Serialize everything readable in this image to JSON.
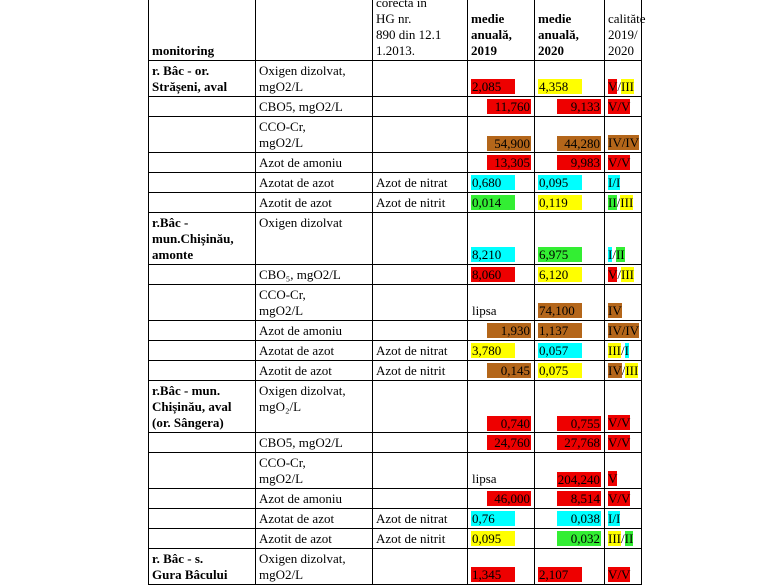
{
  "colors": {
    "V": "#ee0000",
    "IV": "#b4661a",
    "III": "#ffff00",
    "II": "#33ee33",
    "I": "#00ffff"
  },
  "header": {
    "c1": "monitoring",
    "c2": "",
    "c3": "corectă în\nHG nr.\n890 din 12.1\n1.2013.",
    "c4": "medie\nanuală,\n2019",
    "c5": "medie\nanuală,\n2020",
    "c6": "calităte\n2019/\n2020"
  },
  "rows": [
    {
      "station": "r. Bâc - or.\nStrășeni, aval",
      "h": 34,
      "param": "Oxigen dizolvat,\nmgO2/L",
      "form": "",
      "v2019": {
        "text": "2,085",
        "color": "#ee0000",
        "align": "left"
      },
      "v2020": {
        "text": "4,358",
        "color": "#ffff00",
        "align": "left"
      },
      "cls": [
        {
          "text": "V",
          "color": "#ee0000"
        },
        {
          "text": "/",
          "color": ""
        },
        {
          "text": "III",
          "color": "#ffff00"
        }
      ]
    },
    {
      "station": "",
      "h": 20,
      "param": "CBO5, mgO2/L",
      "form": "",
      "v2019": {
        "text": "11,760",
        "color": "#ee0000",
        "align": "right"
      },
      "v2020": {
        "text": "9,133",
        "color": "#ee0000",
        "align": "right"
      },
      "cls": [
        {
          "text": "V/V",
          "color": "#ee0000"
        }
      ]
    },
    {
      "station": "",
      "h": 36,
      "param": "CCO-Cr,\nmgO2/L",
      "form": "",
      "v2019": {
        "text": "54,900",
        "color": "#b4661a",
        "align": "right"
      },
      "v2020": {
        "text": "44,280",
        "color": "#b4661a",
        "align": "right"
      },
      "cls": [
        {
          "text": "IV/IV",
          "color": "#b4661a"
        }
      ]
    },
    {
      "station": "",
      "h": 20,
      "param": "Azot de amoniu",
      "form": "",
      "v2019": {
        "text": "13,305",
        "color": "#ee0000",
        "align": "right"
      },
      "v2020": {
        "text": "9,983",
        "color": "#ee0000",
        "align": "right"
      },
      "cls": [
        {
          "text": "V/V",
          "color": "#ee0000"
        }
      ]
    },
    {
      "station": "",
      "h": 20,
      "param": "Azotat de azot",
      "form": "Azot de nitrat",
      "v2019": {
        "text": "0,680",
        "color": "#00ffff",
        "align": "left"
      },
      "v2020": {
        "text": "0,095",
        "color": "#00ffff",
        "align": "left"
      },
      "cls": [
        {
          "text": "I/I",
          "color": "#00ffff"
        }
      ]
    },
    {
      "station": "",
      "h": 20,
      "param": "Azotit de azot",
      "form": "Azot de nitrit",
      "v2019": {
        "text": "0,014",
        "color": "#33ee33",
        "align": "left"
      },
      "v2020": {
        "text": "0,119",
        "color": "#ffff00",
        "align": "left"
      },
      "cls": [
        {
          "text": "II",
          "color": "#33ee33"
        },
        {
          "text": "/",
          "color": ""
        },
        {
          "text": "III",
          "color": "#ffff00"
        }
      ]
    },
    {
      "station": "r.Bâc -\nmun.Chișinău,\namonte",
      "h": 52,
      "param": "Oxigen dizolvat",
      "form": "",
      "v2019": {
        "text": "8,210",
        "color": "#00ffff",
        "align": "left"
      },
      "v2020": {
        "text": "6,975",
        "color": "#33ee33",
        "align": "left"
      },
      "cls": [
        {
          "text": "I",
          "color": "#00ffff"
        },
        {
          "text": "/",
          "color": ""
        },
        {
          "text": "II",
          "color": "#33ee33"
        }
      ]
    },
    {
      "station": "",
      "h": 20,
      "param": "CBO₅, mgO2/L",
      "form": "",
      "v2019": {
        "text": "8,060",
        "color": "#ee0000",
        "align": "left"
      },
      "v2020": {
        "text": "6,120",
        "color": "#ffff00",
        "align": "left"
      },
      "cls": [
        {
          "text": "V",
          "color": "#ee0000"
        },
        {
          "text": "/",
          "color": ""
        },
        {
          "text": "III",
          "color": "#ffff00"
        }
      ]
    },
    {
      "station": "",
      "h": 36,
      "param": "CCO-Cr,\nmgO2/L",
      "form": "",
      "v2019": {
        "text": "lipsa",
        "color": "",
        "align": "left"
      },
      "v2020": {
        "text": "74,100",
        "color": "#b4661a",
        "align": "left"
      },
      "cls": [
        {
          "text": "IV",
          "color": "#b4661a"
        }
      ]
    },
    {
      "station": "",
      "h": 20,
      "param": "Azot de amoniu",
      "form": "",
      "v2019": {
        "text": "1,930",
        "color": "#b4661a",
        "align": "right"
      },
      "v2020": {
        "text": "1,137",
        "color": "#b4661a",
        "align": "left"
      },
      "cls": [
        {
          "text": "IV/IV",
          "color": "#b4661a"
        }
      ]
    },
    {
      "station": "",
      "h": 20,
      "param": "Azotat de azot",
      "form": "Azot de nitrat",
      "v2019": {
        "text": "3,780",
        "color": "#ffff00",
        "align": "left"
      },
      "v2020": {
        "text": "0,057",
        "color": "#00ffff",
        "align": "left"
      },
      "cls": [
        {
          "text": "III",
          "color": "#ffff00"
        },
        {
          "text": "/",
          "color": ""
        },
        {
          "text": "I",
          "color": "#00ffff"
        }
      ]
    },
    {
      "station": "",
      "h": 20,
      "param": "Azotit de azot",
      "form": "Azot de nitrit",
      "v2019": {
        "text": "0,145",
        "color": "#b4661a",
        "align": "right"
      },
      "v2020": {
        "text": "0,075",
        "color": "#ffff00",
        "align": "left"
      },
      "cls": [
        {
          "text": "IV",
          "color": "#b4661a"
        },
        {
          "text": "/",
          "color": ""
        },
        {
          "text": "III",
          "color": "#ffff00"
        }
      ]
    },
    {
      "station": "r.Bâc - mun.\nChișinău, aval\n(or. Sângera)",
      "h": 52,
      "param": "Oxigen dizolvat,\nmgO₂/L",
      "form": "",
      "v2019": {
        "text": "0,740",
        "color": "#ee0000",
        "align": "right"
      },
      "v2020": {
        "text": "0,755",
        "color": "#ee0000",
        "align": "right"
      },
      "cls": [
        {
          "text": "V/V",
          "color": "#ee0000"
        }
      ]
    },
    {
      "station": "",
      "h": 20,
      "param": "CBO5, mgO2/L",
      "form": "",
      "v2019": {
        "text": "24,760",
        "color": "#ee0000",
        "align": "right"
      },
      "v2020": {
        "text": "27,768",
        "color": "#ee0000",
        "align": "right"
      },
      "cls": [
        {
          "text": "V/V",
          "color": "#ee0000"
        }
      ]
    },
    {
      "station": "",
      "h": 36,
      "param": "CCO-Cr,\nmgO2/L",
      "form": "",
      "v2019": {
        "text": "lipsa",
        "color": "",
        "align": "left"
      },
      "v2020": {
        "text": "204,240",
        "color": "#ee0000",
        "align": "right"
      },
      "cls": [
        {
          "text": "V",
          "color": "#ee0000"
        }
      ]
    },
    {
      "station": "",
      "h": 20,
      "param": "Azot de amoniu",
      "form": "",
      "v2019": {
        "text": "46,000",
        "color": "#ee0000",
        "align": "right"
      },
      "v2020": {
        "text": "8,514",
        "color": "#ee0000",
        "align": "right"
      },
      "cls": [
        {
          "text": "V/V",
          "color": "#ee0000"
        }
      ]
    },
    {
      "station": "",
      "h": 20,
      "param": "Azotat de azot",
      "form": "Azot de nitrat",
      "v2019": {
        "text": "0,76",
        "color": "#00ffff",
        "align": "left"
      },
      "v2020": {
        "text": "0,038",
        "color": "#00ffff",
        "align": "right"
      },
      "cls": [
        {
          "text": "I/I",
          "color": "#00ffff"
        }
      ]
    },
    {
      "station": "",
      "h": 20,
      "param": "Azotit de azot",
      "form": "Azot de nitrit",
      "v2019": {
        "text": "0,095",
        "color": "#ffff00",
        "align": "left"
      },
      "v2020": {
        "text": "0,032",
        "color": "#33ee33",
        "align": "right"
      },
      "cls": [
        {
          "text": "III",
          "color": "#ffff00"
        },
        {
          "text": "/",
          "color": ""
        },
        {
          "text": "II",
          "color": "#33ee33"
        }
      ]
    },
    {
      "station": "r. Bâc - s.\nGura Bâcului",
      "h": 36,
      "param": "Oxigen dizolvat,\nmgO2/L",
      "form": "",
      "v2019": {
        "text": "1,345",
        "color": "#ee0000",
        "align": "left"
      },
      "v2020": {
        "text": "2,107",
        "color": "#ee0000",
        "align": "left"
      },
      "cls": [
        {
          "text": "V/V",
          "color": "#ee0000"
        }
      ]
    }
  ]
}
